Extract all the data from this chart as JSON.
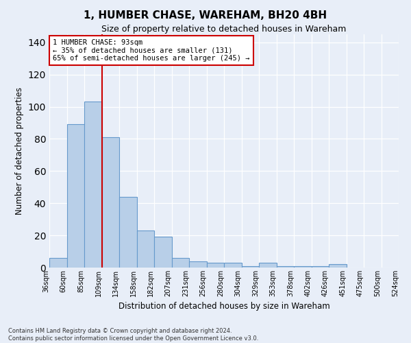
{
  "title": "1, HUMBER CHASE, WAREHAM, BH20 4BH",
  "subtitle": "Size of property relative to detached houses in Wareham",
  "xlabel": "Distribution of detached houses by size in Wareham",
  "ylabel": "Number of detached properties",
  "bar_values": [
    6,
    89,
    103,
    81,
    44,
    23,
    19,
    6,
    4,
    3,
    3,
    1,
    3,
    1,
    1,
    1,
    2
  ],
  "all_labels": [
    "36sqm",
    "60sqm",
    "85sqm",
    "109sqm",
    "134sqm",
    "158sqm",
    "182sqm",
    "207sqm",
    "231sqm",
    "256sqm",
    "280sqm",
    "304sqm",
    "329sqm",
    "353sqm",
    "378sqm",
    "402sqm",
    "426sqm",
    "451sqm",
    "475sqm",
    "500sqm",
    "524sqm"
  ],
  "bar_color": "#b8cfe8",
  "bar_edge_color": "#6699cc",
  "bar_edge_width": 0.8,
  "vline_color": "#cc0000",
  "vline_position": 2.5,
  "ylim": [
    0,
    145
  ],
  "yticks": [
    0,
    20,
    40,
    60,
    80,
    100,
    120,
    140
  ],
  "annotation_text": "1 HUMBER CHASE: 93sqm\n← 35% of detached houses are smaller (131)\n65% of semi-detached houses are larger (245) →",
  "annotation_box_color": "#ffffff",
  "annotation_box_edge": "#cc0000",
  "footer_line1": "Contains HM Land Registry data © Crown copyright and database right 2024.",
  "footer_line2": "Contains public sector information licensed under the Open Government Licence v3.0.",
  "background_color": "#e8eef8",
  "grid_color": "#ffffff"
}
